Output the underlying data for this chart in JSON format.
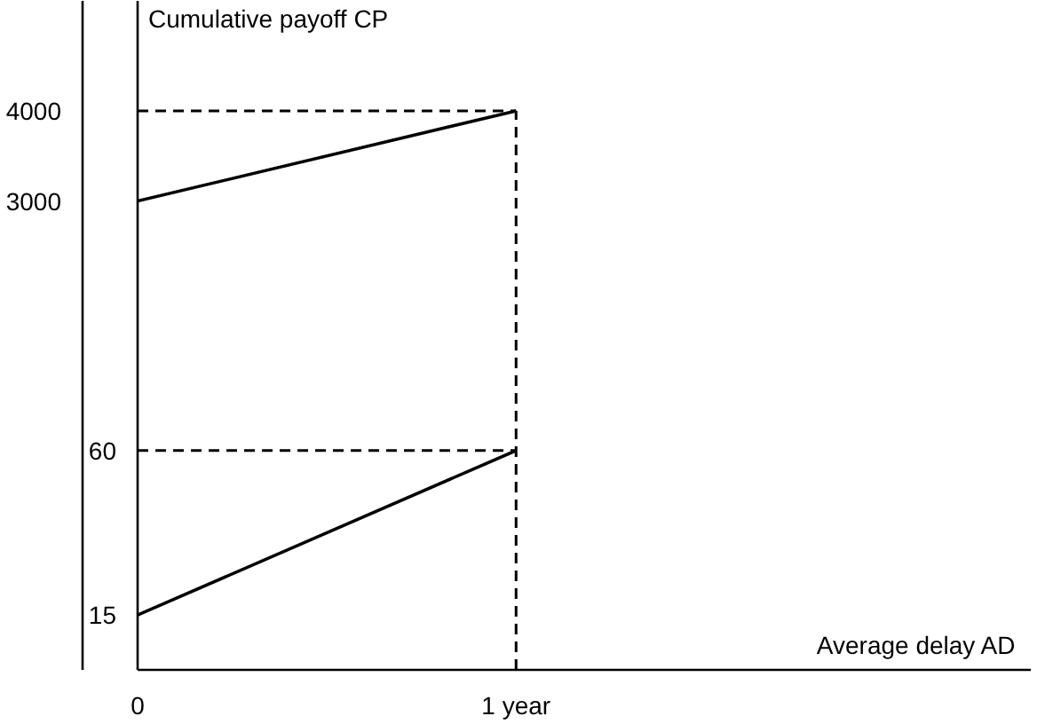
{
  "chart_data": {
    "type": "line",
    "ylabel": "Cumulative payoff CP",
    "xlabel": "Average delay AD",
    "x": [
      0,
      1
    ],
    "xlim": [
      0,
      2.36
    ],
    "xticks": [
      0,
      {
        "value": 1,
        "label": "1 year"
      }
    ],
    "ylim": [
      0,
      183
    ],
    "yticks": [
      15,
      60
    ],
    "y2lim": [
      -2200,
      5220
    ],
    "y2ticks": [
      3000,
      4000
    ],
    "grid": false,
    "series": [
      {
        "color": "#000000",
        "values": [
          15,
          60
        ]
      },
      {
        "color": "#000000",
        "values": [
          3000,
          4000
        ],
        "axis": "y2"
      }
    ],
    "ref_lines": [
      {
        "axis": "y",
        "value": 60,
        "line_style": "dashed",
        "color": "#000000"
      },
      {
        "axis": "y2",
        "value": 4000,
        "line_style": "dashed",
        "color": "#000000"
      },
      {
        "axis": "x",
        "value": 1,
        "line_style": "dashed",
        "color": "#000000"
      }
    ]
  }
}
